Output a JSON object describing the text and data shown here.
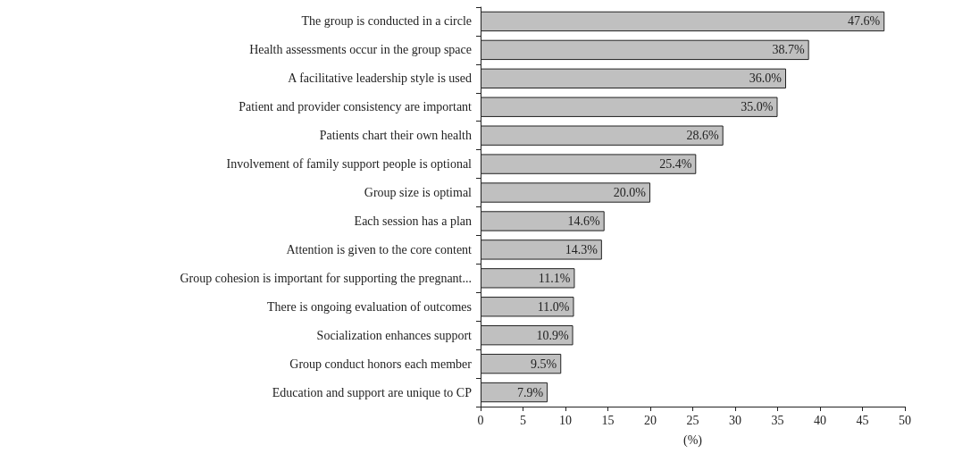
{
  "chart_data": {
    "type": "bar",
    "orientation": "horizontal",
    "xlabel": "(%)",
    "categories": [
      "The group is conducted in a circle",
      "Health assessments occur in the group space",
      "A facilitative leadership style is used",
      "Patient and provider consistency are important",
      "Patients chart their own health",
      "Involvement of family support people is optional",
      "Group size is optimal",
      "Each session has a plan",
      "Attention is given to the core content",
      "Group cohesion is important for supporting the pregnant...",
      "There is ongoing evaluation of outcomes",
      "Socialization enhances support",
      "Group conduct honors each member",
      "Education and support are unique to CP"
    ],
    "values": [
      47.6,
      38.7,
      36.0,
      35.0,
      28.6,
      25.4,
      20.0,
      14.6,
      14.3,
      11.1,
      11.0,
      10.9,
      9.5,
      7.9
    ],
    "value_labels": [
      "47.6%",
      "38.7%",
      "36.0%",
      "35.0%",
      "28.6%",
      "25.4%",
      "20.0%",
      "14.6%",
      "14.3%",
      "11.1%",
      "11.0%",
      "10.9%",
      "9.5%",
      "7.9%"
    ],
    "color": "#c0c0c0",
    "xlim": [
      0,
      50
    ],
    "xticks": [
      0,
      5,
      10,
      15,
      20,
      25,
      30,
      35,
      40,
      45,
      50
    ],
    "grid": false
  }
}
